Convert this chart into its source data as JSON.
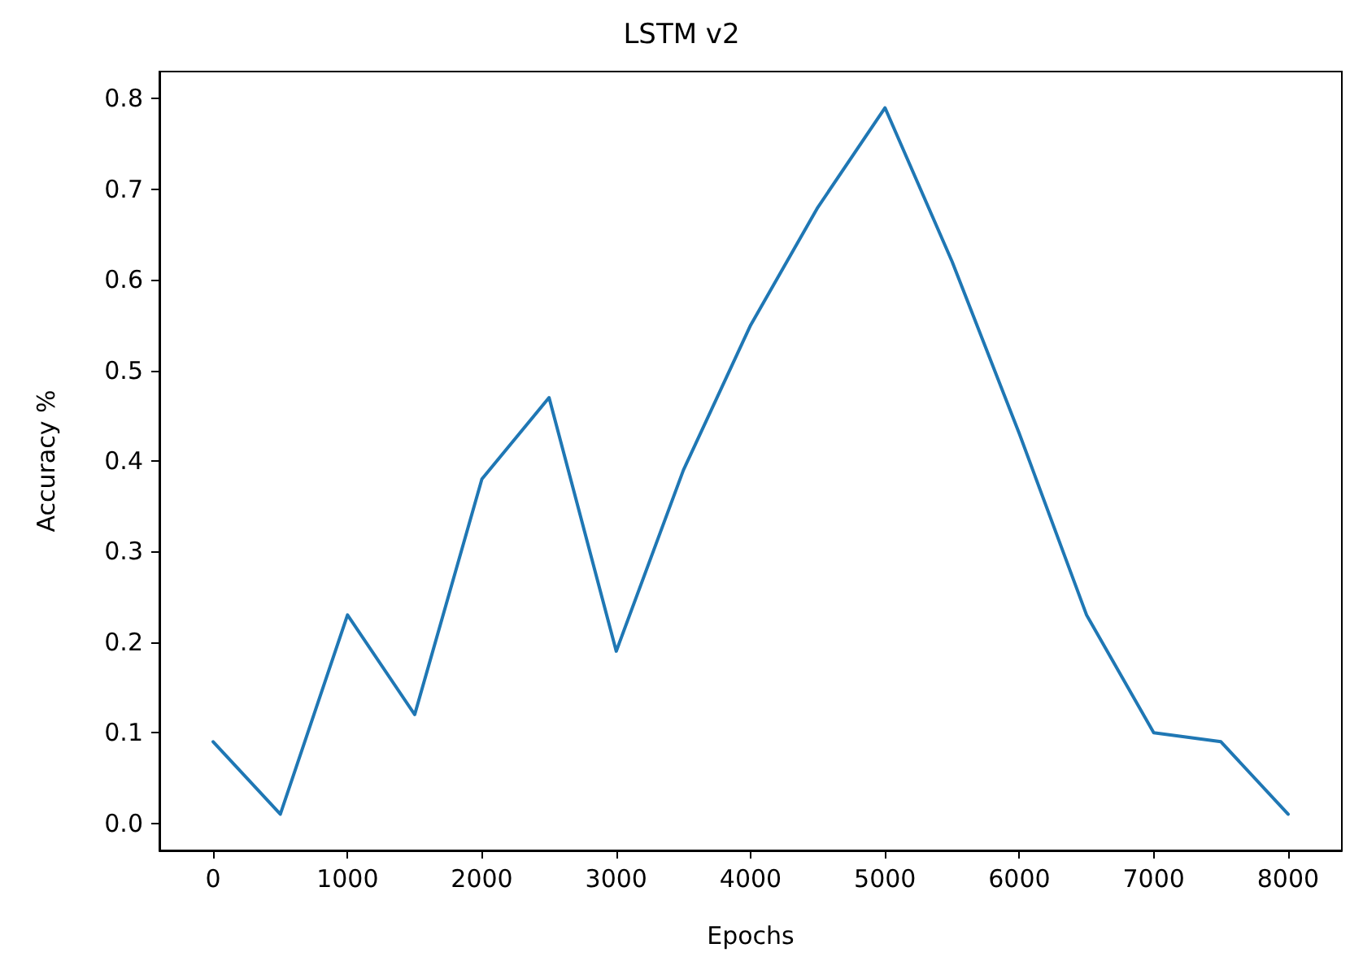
{
  "chart_data": {
    "type": "line",
    "title": "LSTM v2",
    "xlabel": "Epochs",
    "ylabel": "Accuracy %",
    "x": [
      0,
      500,
      1000,
      1500,
      2000,
      2500,
      3000,
      3500,
      4000,
      4500,
      5000,
      5500,
      6000,
      6500,
      7000,
      7500,
      8000
    ],
    "series": [
      {
        "color": "#1f77b4",
        "values": [
          0.09,
          0.01,
          0.23,
          0.12,
          0.38,
          0.47,
          0.19,
          0.39,
          0.55,
          0.68,
          0.79,
          0.62,
          0.43,
          0.23,
          0.1,
          0.09,
          0.01
        ]
      }
    ],
    "xlim": [
      -400,
      8400
    ],
    "xticks": [
      0,
      1000,
      2000,
      3000,
      4000,
      5000,
      6000,
      7000,
      8000
    ],
    "ylim": [
      -0.03,
      0.83
    ],
    "yticks": [
      {
        "value": 0,
        "label": "0.0"
      },
      0.1,
      0.2,
      0.3,
      0.4,
      0.5,
      0.6,
      0.7,
      0.8
    ],
    "marker": "none",
    "line_style": "solid"
  }
}
